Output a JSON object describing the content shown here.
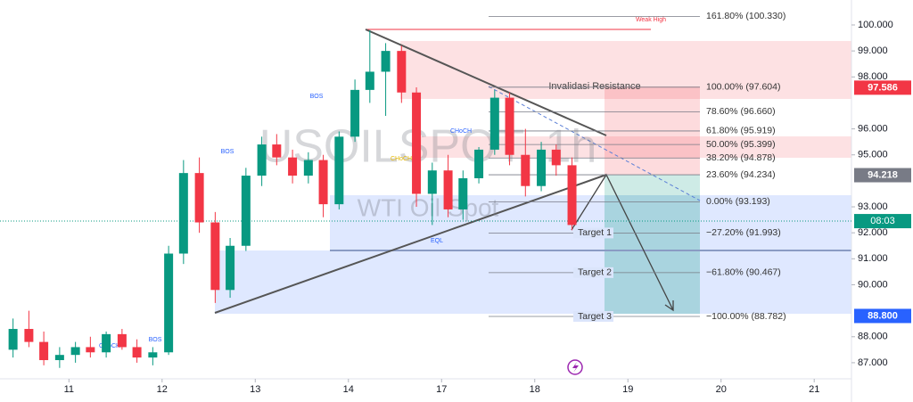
{
  "chart_data": {
    "type": "candlestick",
    "watermark": "USOILSPOT, 1h",
    "subtitle": "WTI Oil Spot",
    "up_color": "#089981",
    "down_color": "#f23645",
    "xlim": [
      0.26,
      9.4
    ],
    "ylim": [
      86.38,
      100.96
    ],
    "xticks": [
      {
        "value": 1,
        "label": "11"
      },
      {
        "value": 2,
        "label": "12"
      },
      {
        "value": 3,
        "label": "13"
      },
      {
        "value": 4,
        "label": "14"
      },
      {
        "value": 5,
        "label": "17"
      },
      {
        "value": 6,
        "label": "18"
      },
      {
        "value": 7,
        "label": "19"
      },
      {
        "value": 8,
        "label": "20"
      },
      {
        "value": 9,
        "label": "21"
      }
    ],
    "yticks": [
      {
        "value": 100,
        "label": "100.000"
      },
      {
        "value": 99,
        "label": "99.000"
      },
      {
        "value": 98,
        "label": "98.000"
      },
      {
        "value": 96,
        "label": "96.000"
      },
      {
        "value": 95,
        "label": "95.000"
      },
      {
        "value": 93,
        "label": "93.000"
      },
      {
        "value": 92,
        "label": "92.000"
      },
      {
        "value": 91,
        "label": "91.000"
      },
      {
        "value": 90,
        "label": "90.000"
      },
      {
        "value": 88,
        "label": "88.000"
      },
      {
        "value": 87,
        "label": "87.000"
      }
    ],
    "x": [
      0.4,
      0.57,
      0.73,
      0.9,
      1.07,
      1.23,
      1.4,
      1.57,
      1.73,
      1.9,
      2.07,
      2.23,
      2.4,
      2.57,
      2.73,
      2.9,
      3.07,
      3.23,
      3.4,
      3.57,
      3.73,
      3.9,
      4.07,
      4.23,
      4.4,
      4.57,
      4.73,
      4.9,
      5.07,
      5.23,
      5.4,
      5.57,
      5.73,
      5.9,
      6.07,
      6.23,
      6.4
    ],
    "open": [
      87.5,
      88.3,
      87.8,
      87.1,
      87.3,
      87.6,
      87.4,
      88.1,
      87.6,
      87.2,
      87.4,
      91.2,
      94.3,
      92.4,
      89.8,
      91.5,
      94.2,
      95.4,
      94.9,
      94.2,
      94.8,
      93.1,
      95.7,
      97.5,
      98.2,
      99.0,
      97.4,
      93.5,
      94.4,
      92.9,
      94.1,
      95.2,
      97.2,
      95.0,
      93.8,
      95.2,
      94.6
    ],
    "high": [
      88.7,
      89.0,
      88.2,
      87.6,
      87.8,
      88.0,
      88.2,
      88.3,
      87.9,
      87.6,
      91.5,
      94.8,
      94.9,
      92.8,
      91.8,
      94.5,
      95.7,
      95.8,
      95.2,
      95.1,
      95.0,
      95.9,
      97.9,
      99.8,
      99.3,
      99.2,
      97.6,
      94.7,
      95.0,
      94.4,
      95.3,
      97.5,
      97.4,
      96.0,
      95.5,
      95.4,
      94.9
    ],
    "low": [
      87.2,
      87.6,
      86.9,
      86.8,
      87.0,
      87.2,
      87.2,
      87.5,
      87.0,
      86.9,
      87.3,
      90.8,
      92.0,
      89.3,
      89.5,
      91.3,
      93.8,
      94.6,
      93.9,
      93.9,
      92.6,
      92.9,
      95.5,
      97.0,
      96.5,
      97.0,
      93.0,
      92.3,
      92.6,
      92.5,
      93.9,
      95.0,
      94.6,
      93.4,
      93.6,
      94.2,
      92.1
    ],
    "close": [
      88.3,
      87.8,
      87.1,
      87.3,
      87.6,
      87.4,
      88.1,
      87.6,
      87.2,
      87.4,
      91.2,
      94.3,
      92.4,
      89.8,
      91.5,
      94.2,
      95.4,
      94.9,
      94.2,
      94.8,
      93.1,
      95.7,
      97.5,
      98.2,
      99.0,
      97.4,
      93.5,
      94.4,
      92.9,
      94.1,
      95.2,
      97.2,
      95.0,
      93.8,
      95.2,
      94.6,
      92.3
    ],
    "fib_levels": [
      {
        "label": "161.80% (100.330)",
        "value": 100.33
      },
      {
        "label": "100.00% (97.604)",
        "value": 97.604
      },
      {
        "label": "78.60% (96.660)",
        "value": 96.66
      },
      {
        "label": "61.80% (95.919)",
        "value": 95.919
      },
      {
        "label": "50.00% (95.399)",
        "value": 95.399
      },
      {
        "label": "38.20% (94.878)",
        "value": 94.878
      },
      {
        "label": "23.60% (94.234)",
        "value": 94.234
      },
      {
        "label": "0.00% (93.193)",
        "value": 93.193
      },
      {
        "label": "−27.20% (91.993)",
        "value": 91.993,
        "target": "Target 1"
      },
      {
        "label": "−61.80% (90.467)",
        "value": 90.467,
        "target": "Target 2"
      },
      {
        "label": "−100.00% (88.782)",
        "value": 88.782,
        "target": "Target 3"
      }
    ],
    "price_tags": [
      {
        "label": "97.586",
        "value": 97.586,
        "color": "#f23645"
      },
      {
        "label": "94.218",
        "value": 94.218,
        "color": "#787b86"
      },
      {
        "label": "88.800",
        "value": 88.8,
        "color": "#2962ff"
      }
    ],
    "current_price": 92.45,
    "countdown": "08:03",
    "annotations": [
      "BOS",
      "BOS",
      "CHoCH",
      "CHoCH",
      "BOS",
      "EQL",
      "Weak High",
      "Invalidasi Resistance",
      "CHoCH"
    ]
  }
}
